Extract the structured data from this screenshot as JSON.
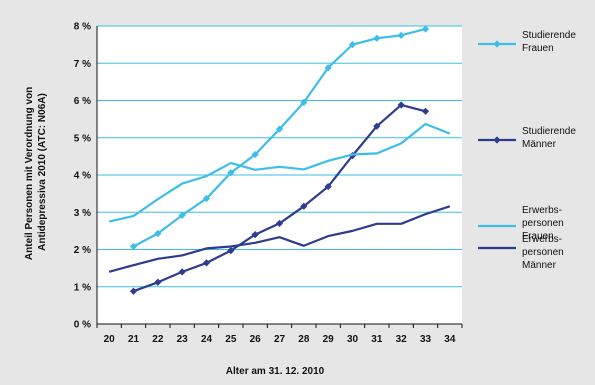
{
  "chart_data": {
    "type": "line",
    "title": "",
    "xlabel": "Alter am 31. 12. 2010",
    "ylabel": "Anteil Personen mit Verordnung von Antidepressiva 2010 (ATC: N06A)",
    "ylabel_lines": [
      "Anteil Personen mit Verordnung von",
      "Antidepressiva 2010 (ATC: N06A)"
    ],
    "x_ticks": [
      "20",
      "21",
      "22",
      "23",
      "24",
      "25",
      "26",
      "27",
      "28",
      "29",
      "30",
      "31",
      "32",
      "33",
      "34"
    ],
    "y_ticks": [
      "0 %",
      "1 %",
      "2 %",
      "3 %",
      "4 %",
      "5 %",
      "6 %",
      "7 %",
      "8 %"
    ],
    "xlim": [
      20,
      34
    ],
    "ylim": [
      0,
      8
    ],
    "grid": "horizontal",
    "legend_position": "right",
    "series": [
      {
        "name": "Studierende Frauen",
        "legend_lines": [
          "Studierende",
          "Frauen"
        ],
        "color": "#3dbde8",
        "marker": "diamond",
        "x": [
          21,
          22,
          23,
          24,
          25,
          26,
          27,
          28,
          29,
          30,
          31,
          32,
          33
        ],
        "values": [
          2.08,
          2.43,
          2.92,
          3.37,
          4.06,
          4.55,
          5.23,
          5.95,
          6.88,
          7.5,
          7.67,
          7.75,
          7.92
        ]
      },
      {
        "name": "Studierende Männer",
        "legend_lines": [
          "Studierende",
          "Männer"
        ],
        "color": "#2e3c8e",
        "marker": "diamond",
        "x": [
          21,
          22,
          23,
          24,
          25,
          26,
          27,
          28,
          29,
          30,
          31,
          32,
          33
        ],
        "values": [
          0.88,
          1.12,
          1.4,
          1.64,
          1.97,
          2.4,
          2.7,
          3.16,
          3.69,
          4.52,
          5.31,
          5.88,
          5.71
        ]
      },
      {
        "name": "Erwerbspersonen Frauen",
        "legend_lines": [
          "Erwerbs-",
          "personen",
          "Frauen"
        ],
        "color": "#3dbde8",
        "marker": "none",
        "x": [
          20,
          21,
          22,
          23,
          24,
          25,
          26,
          27,
          28,
          29,
          30,
          31,
          32,
          33,
          34
        ],
        "values": [
          2.75,
          2.9,
          3.35,
          3.77,
          3.97,
          4.32,
          4.14,
          4.22,
          4.15,
          4.38,
          4.55,
          4.58,
          4.85,
          5.37,
          5.11
        ]
      },
      {
        "name": "Erwerbspersonen Männer",
        "legend_lines": [
          "Erwerbs-",
          "personen",
          "Männer"
        ],
        "color": "#2e3c8e",
        "marker": "none",
        "x": [
          20,
          21,
          22,
          23,
          24,
          25,
          26,
          27,
          28,
          29,
          30,
          31,
          32,
          33,
          34
        ],
        "values": [
          1.4,
          1.58,
          1.75,
          1.84,
          2.03,
          2.08,
          2.18,
          2.33,
          2.1,
          2.36,
          2.5,
          2.69,
          2.69,
          2.95,
          3.16
        ]
      }
    ]
  }
}
